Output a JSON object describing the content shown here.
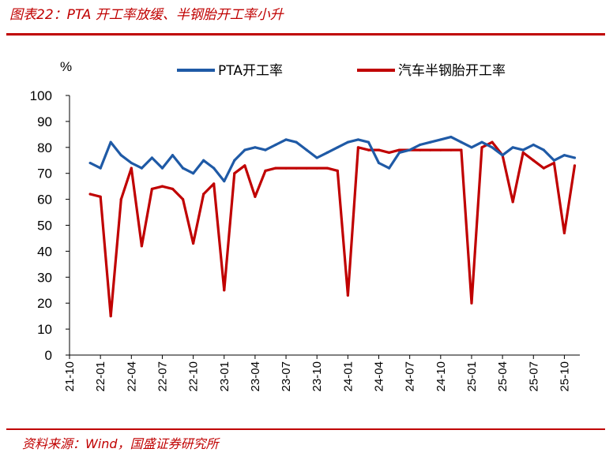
{
  "header": {
    "title": "图表22：PTA 开工率放缓、半钢胎开工率小升"
  },
  "footer": {
    "source": "资料来源：Wind，国盛证券研究所"
  },
  "colors": {
    "accent": "#c00000",
    "pta": "#1f5aa6",
    "tire": "#c00000"
  },
  "chart_data": {
    "type": "line",
    "title": "",
    "xlabel": "",
    "ylabel": "%",
    "ylim": [
      0,
      100
    ],
    "yticks": [
      0,
      10,
      20,
      30,
      40,
      50,
      60,
      70,
      80,
      90,
      100
    ],
    "grid": false,
    "legend": "top",
    "x_ticks": [
      "21-10",
      "22-01",
      "22-04",
      "22-07",
      "22-10",
      "23-01",
      "23-04",
      "23-07",
      "23-10",
      "24-01",
      "24-04",
      "24-07",
      "24-10",
      "25-01",
      "25-04",
      "25-07",
      "25-10"
    ],
    "x": [
      "21-12",
      "22-01",
      "22-02",
      "22-03",
      "22-04",
      "22-05",
      "22-06",
      "22-07",
      "22-08",
      "22-09",
      "22-10",
      "22-11",
      "22-12",
      "23-01",
      "23-02",
      "23-03",
      "23-04",
      "23-05",
      "23-06",
      "23-07",
      "23-08",
      "23-09",
      "23-10",
      "23-11",
      "23-12",
      "24-01",
      "24-02",
      "24-03",
      "24-04",
      "24-05",
      "24-06",
      "24-07",
      "24-08",
      "24-09",
      "24-10",
      "24-11",
      "24-12",
      "25-01",
      "25-02",
      "25-03",
      "25-04",
      "25-05",
      "25-06",
      "25-07",
      "25-08",
      "25-09",
      "25-10",
      "25-11"
    ],
    "series": [
      {
        "name": "PTA开工率",
        "color": "#1f5aa6",
        "values": [
          74,
          72,
          82,
          77,
          74,
          72,
          76,
          72,
          77,
          72,
          70,
          75,
          72,
          67,
          75,
          79,
          80,
          79,
          81,
          83,
          82,
          79,
          76,
          78,
          80,
          82,
          83,
          82,
          74,
          72,
          78,
          79,
          81,
          82,
          83,
          84,
          82,
          80,
          82,
          80,
          77,
          80,
          79,
          81,
          79,
          75,
          77,
          76
        ]
      },
      {
        "name": "汽车半钢胎开工率",
        "color": "#c00000",
        "values": [
          62,
          61,
          15,
          60,
          72,
          42,
          64,
          65,
          64,
          60,
          43,
          62,
          66,
          25,
          70,
          73,
          61,
          71,
          72,
          72,
          72,
          72,
          72,
          72,
          71,
          23,
          80,
          79,
          79,
          78,
          79,
          79,
          79,
          79,
          79,
          79,
          79,
          20,
          80,
          82,
          77,
          59,
          78,
          75,
          72,
          74,
          47,
          73
        ]
      }
    ]
  }
}
